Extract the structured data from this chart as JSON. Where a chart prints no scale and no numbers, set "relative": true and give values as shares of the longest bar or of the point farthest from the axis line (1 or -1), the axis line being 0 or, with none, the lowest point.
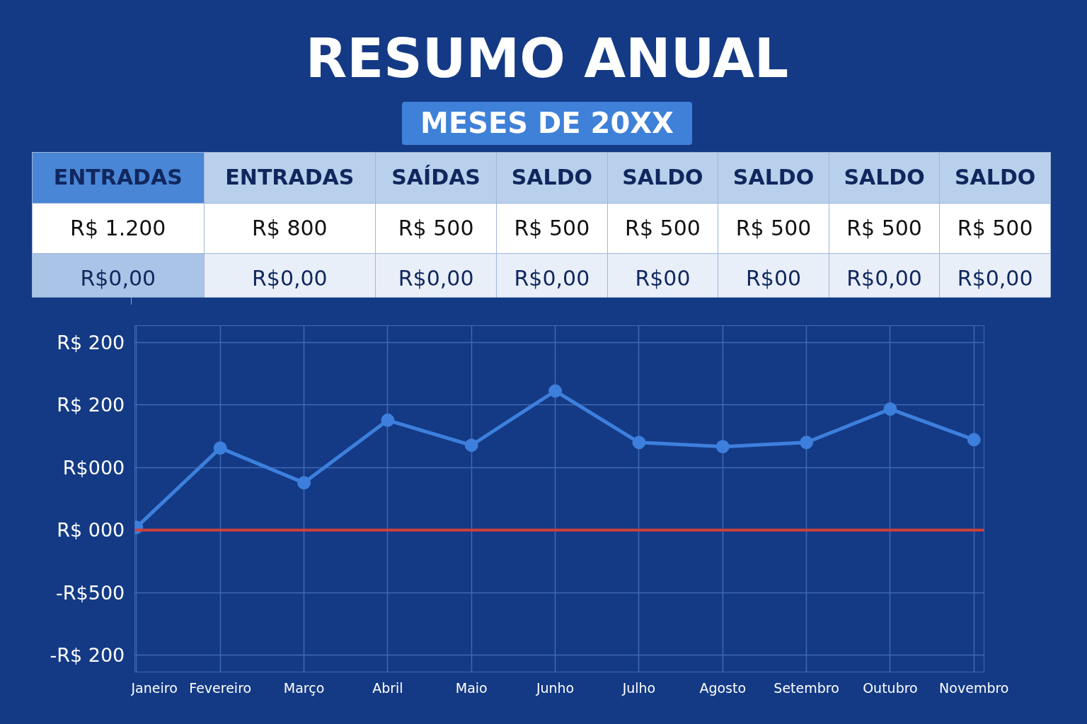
{
  "chart_data": {
    "type": "line",
    "title": "RESUMO ANUAL",
    "subtitle": "MESES DE 20XX",
    "categories": [
      "Janeiro",
      "Fevereiro",
      "Março",
      "Abril",
      "Maio",
      "Junho",
      "Julho",
      "Agosto",
      "Setembro",
      "Outubro",
      "Novembro"
    ],
    "series": [
      {
        "color": "#3d7fdc",
        "values": [
          0.02,
          0.59,
          0.34,
          0.79,
          0.61,
          1,
          0.63,
          0.6,
          0.63,
          0.87,
          0.65
        ]
      }
    ],
    "relative": true,
    "ref_lines": [
      {
        "axis": "y",
        "value": 0,
        "color": "#d0403a"
      }
    ],
    "grid": true,
    "marker": "circle",
    "line_style": "solid",
    "annotations": [
      "ENTRADAS",
      "ENTRADAS",
      "SAÍDAS",
      "SALDO",
      "SALDO",
      "SALDO",
      "SALDO",
      "SALDO",
      "R$ 1.200",
      "R$ 800",
      "R$ 500",
      "R$ 500",
      "R$ 500",
      "R$ 500",
      "R$ 500",
      "R$ 500",
      "R$0,00",
      "R$0,00",
      "R$0,00",
      "R$0,00",
      "R$00",
      "R$00",
      "R$0,00",
      "R$0,00",
      "R$ 200",
      "R$ 200",
      "R$000",
      "R$ 000",
      "-R$500",
      "-R$ 200"
    ]
  }
}
